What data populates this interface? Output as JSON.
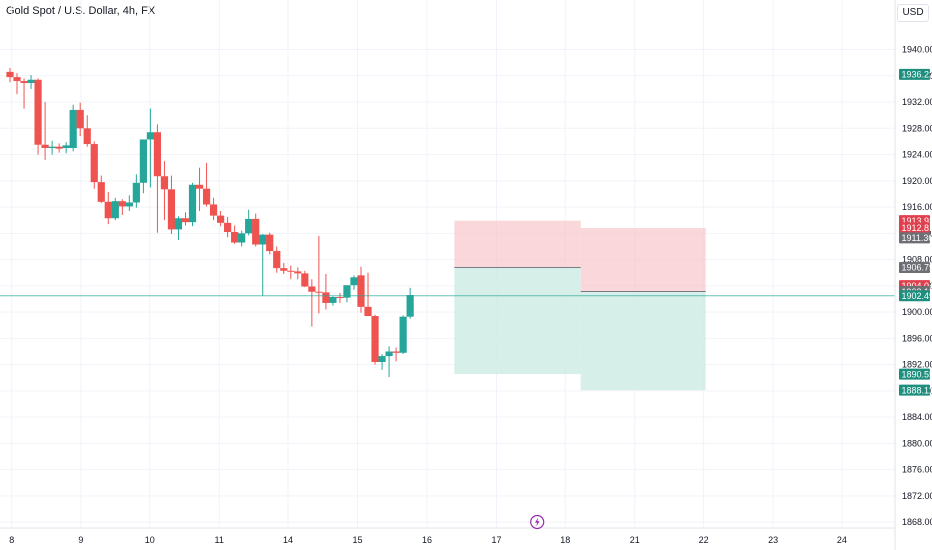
{
  "header": {
    "title": "Gold Spot / U.S. Dollar, 4h, FX",
    "currency": "USD"
  },
  "colors": {
    "up": "#26a69a",
    "down": "#ef5350",
    "stop_zone": "#f7c9cd",
    "target_zone": "#cdebe4",
    "price_line": "#26a69a",
    "badge_green": "#1e8f7e",
    "badge_red": "#e03f4d",
    "badge_gray": "#6d6f75",
    "event_icon": "#9c27b0"
  },
  "chart_data": {
    "type": "candlestick",
    "symbol": "Gold Spot / U.S. Dollar",
    "interval": "4h",
    "exchange": "FX",
    "currency": "USD",
    "ylim": [
      1866.5,
      1944.5
    ],
    "y_ticks": [
      "1868.00",
      "1872.00",
      "1876.00",
      "1880.00",
      "1884.00",
      "1888.00",
      "1892.00",
      "1896.00",
      "1900.00",
      "1904.00",
      "1908.00",
      "1912.00",
      "1916.00",
      "1920.00",
      "1924.00",
      "1928.00",
      "1932.00",
      "1936.00",
      "1940.00"
    ],
    "x_ticks": [
      {
        "label": "8",
        "t": 0.25
      },
      {
        "label": "9",
        "t": 10.1
      },
      {
        "label": "10",
        "t": 19.9
      },
      {
        "label": "11",
        "t": 29.8
      },
      {
        "label": "14",
        "t": 39.6
      },
      {
        "label": "15",
        "t": 49.5
      },
      {
        "label": "16",
        "t": 59.4
      },
      {
        "label": "17",
        "t": 69.3
      },
      {
        "label": "18",
        "t": 79.1
      },
      {
        "label": "21",
        "t": 89.0
      },
      {
        "label": "22",
        "t": 98.8
      },
      {
        "label": "23",
        "t": 108.7
      },
      {
        "label": "24",
        "t": 118.5
      }
    ],
    "candles": [
      {
        "o": 1936.6,
        "h": 1937.2,
        "l": 1935.0,
        "c": 1935.8
      },
      {
        "o": 1935.8,
        "h": 1936.4,
        "l": 1933.2,
        "c": 1935.2
      },
      {
        "o": 1935.2,
        "h": 1935.6,
        "l": 1931.0,
        "c": 1934.9
      },
      {
        "o": 1934.9,
        "h": 1936.1,
        "l": 1934.0,
        "c": 1935.4
      },
      {
        "o": 1935.4,
        "h": 1935.6,
        "l": 1924.0,
        "c": 1925.5
      },
      {
        "o": 1925.5,
        "h": 1932.0,
        "l": 1923.2,
        "c": 1925.0
      },
      {
        "o": 1925.0,
        "h": 1926.1,
        "l": 1924.0,
        "c": 1925.2
      },
      {
        "o": 1925.2,
        "h": 1925.7,
        "l": 1924.3,
        "c": 1924.9
      },
      {
        "o": 1925.0,
        "h": 1925.9,
        "l": 1924.2,
        "c": 1925.4
      },
      {
        "o": 1925.0,
        "h": 1931.6,
        "l": 1924.5,
        "c": 1930.8
      },
      {
        "o": 1930.8,
        "h": 1931.9,
        "l": 1926.8,
        "c": 1928.0
      },
      {
        "o": 1928.0,
        "h": 1930.0,
        "l": 1925.2,
        "c": 1925.6
      },
      {
        "o": 1925.6,
        "h": 1926.0,
        "l": 1918.8,
        "c": 1919.8
      },
      {
        "o": 1919.8,
        "h": 1920.8,
        "l": 1916.6,
        "c": 1916.8
      },
      {
        "o": 1916.8,
        "h": 1918.3,
        "l": 1913.4,
        "c": 1914.3
      },
      {
        "o": 1914.3,
        "h": 1917.4,
        "l": 1914.0,
        "c": 1916.9
      },
      {
        "o": 1916.9,
        "h": 1917.2,
        "l": 1914.8,
        "c": 1916.1
      },
      {
        "o": 1916.1,
        "h": 1917.8,
        "l": 1915.4,
        "c": 1916.7
      },
      {
        "o": 1916.7,
        "h": 1921.0,
        "l": 1915.9,
        "c": 1919.7
      },
      {
        "o": 1919.7,
        "h": 1926.0,
        "l": 1918.1,
        "c": 1926.3
      },
      {
        "o": 1926.3,
        "h": 1931.0,
        "l": 1919.0,
        "c": 1927.4
      },
      {
        "o": 1927.4,
        "h": 1928.6,
        "l": 1912.1,
        "c": 1920.7
      },
      {
        "o": 1920.7,
        "h": 1923.0,
        "l": 1914.0,
        "c": 1918.7
      },
      {
        "o": 1918.7,
        "h": 1920.8,
        "l": 1911.9,
        "c": 1912.6
      },
      {
        "o": 1912.6,
        "h": 1914.6,
        "l": 1911.0,
        "c": 1914.3
      },
      {
        "o": 1914.3,
        "h": 1915.2,
        "l": 1913.2,
        "c": 1913.7
      },
      {
        "o": 1913.7,
        "h": 1919.7,
        "l": 1913.1,
        "c": 1919.4
      },
      {
        "o": 1919.4,
        "h": 1922.0,
        "l": 1915.4,
        "c": 1918.8
      },
      {
        "o": 1918.8,
        "h": 1922.7,
        "l": 1916.1,
        "c": 1916.4
      },
      {
        "o": 1916.4,
        "h": 1917.4,
        "l": 1914.0,
        "c": 1914.7
      },
      {
        "o": 1914.7,
        "h": 1915.4,
        "l": 1913.1,
        "c": 1913.6
      },
      {
        "o": 1913.6,
        "h": 1914.5,
        "l": 1911.4,
        "c": 1912.2
      },
      {
        "o": 1912.2,
        "h": 1913.2,
        "l": 1910.4,
        "c": 1910.6
      },
      {
        "o": 1910.6,
        "h": 1912.4,
        "l": 1910.0,
        "c": 1912.0
      },
      {
        "o": 1912.0,
        "h": 1915.6,
        "l": 1911.7,
        "c": 1914.2
      },
      {
        "o": 1914.2,
        "h": 1915.0,
        "l": 1910.0,
        "c": 1910.3
      },
      {
        "o": 1910.3,
        "h": 1911.9,
        "l": 1902.5,
        "c": 1911.8
      },
      {
        "o": 1911.8,
        "h": 1912.1,
        "l": 1908.8,
        "c": 1909.3
      },
      {
        "o": 1909.3,
        "h": 1910.0,
        "l": 1906.0,
        "c": 1906.7
      },
      {
        "o": 1906.7,
        "h": 1907.5,
        "l": 1905.8,
        "c": 1906.3
      },
      {
        "o": 1906.3,
        "h": 1907.1,
        "l": 1905.0,
        "c": 1906.2
      },
      {
        "o": 1906.2,
        "h": 1906.8,
        "l": 1905.0,
        "c": 1905.9
      },
      {
        "o": 1905.9,
        "h": 1906.3,
        "l": 1903.8,
        "c": 1903.9
      },
      {
        "o": 1903.9,
        "h": 1905.0,
        "l": 1897.8,
        "c": 1903.1
      },
      {
        "o": 1903.1,
        "h": 1911.6,
        "l": 1899.8,
        "c": 1903.0
      },
      {
        "o": 1903.0,
        "h": 1905.8,
        "l": 1900.4,
        "c": 1901.4
      },
      {
        "o": 1901.4,
        "h": 1902.4,
        "l": 1901.0,
        "c": 1902.3
      },
      {
        "o": 1902.3,
        "h": 1902.9,
        "l": 1901.4,
        "c": 1902.2
      },
      {
        "o": 1902.2,
        "h": 1903.8,
        "l": 1901.5,
        "c": 1904.1
      },
      {
        "o": 1904.1,
        "h": 1905.6,
        "l": 1903.4,
        "c": 1905.3
      },
      {
        "o": 1905.6,
        "h": 1906.9,
        "l": 1899.9,
        "c": 1900.8
      },
      {
        "o": 1900.8,
        "h": 1906.0,
        "l": 1899.4,
        "c": 1899.4
      },
      {
        "o": 1899.4,
        "h": 1899.6,
        "l": 1892.0,
        "c": 1892.4
      },
      {
        "o": 1892.4,
        "h": 1893.6,
        "l": 1891.2,
        "c": 1893.3
      },
      {
        "o": 1893.3,
        "h": 1894.8,
        "l": 1890.1,
        "c": 1894.0
      },
      {
        "o": 1894.0,
        "h": 1894.6,
        "l": 1892.5,
        "c": 1893.8
      },
      {
        "o": 1893.8,
        "h": 1899.5,
        "l": 1893.6,
        "c": 1899.3
      },
      {
        "o": 1899.3,
        "h": 1903.7,
        "l": 1899.0,
        "c": 1902.6
      }
    ],
    "current_price": 1902.49,
    "positions": [
      {
        "name": "short-1",
        "entry": 1906.79,
        "stop": 1913.93,
        "target": 1890.55,
        "start": 63.3,
        "end": 81.3
      },
      {
        "name": "short-2",
        "entry": 1903.13,
        "stop": 1912.81,
        "target": 1888.11,
        "start": 81.3,
        "end": 99.1
      }
    ],
    "labels": [
      {
        "text": "1936.22",
        "price": 1936.22,
        "color": "badge_green"
      },
      {
        "text": "1913.93",
        "price": 1913.93,
        "color": "badge_red"
      },
      {
        "text": "1912.81",
        "price": 1912.81,
        "color": "badge_red"
      },
      {
        "text": "1911.30",
        "price": 1911.3,
        "color": "badge_gray"
      },
      {
        "text": "1906.79",
        "price": 1906.79,
        "color": "badge_gray"
      },
      {
        "text": "1904.04",
        "price": 1904.04,
        "color": "badge_red"
      },
      {
        "text": "1903.13",
        "price": 1903.13,
        "color": "badge_gray"
      },
      {
        "text": "1902.49",
        "price": 1902.49,
        "color": "badge_green"
      },
      {
        "text": "1890.55",
        "price": 1890.55,
        "color": "badge_green"
      },
      {
        "text": "1888.11",
        "price": 1888.11,
        "color": "badge_green"
      }
    ],
    "event_t": 75.1
  }
}
